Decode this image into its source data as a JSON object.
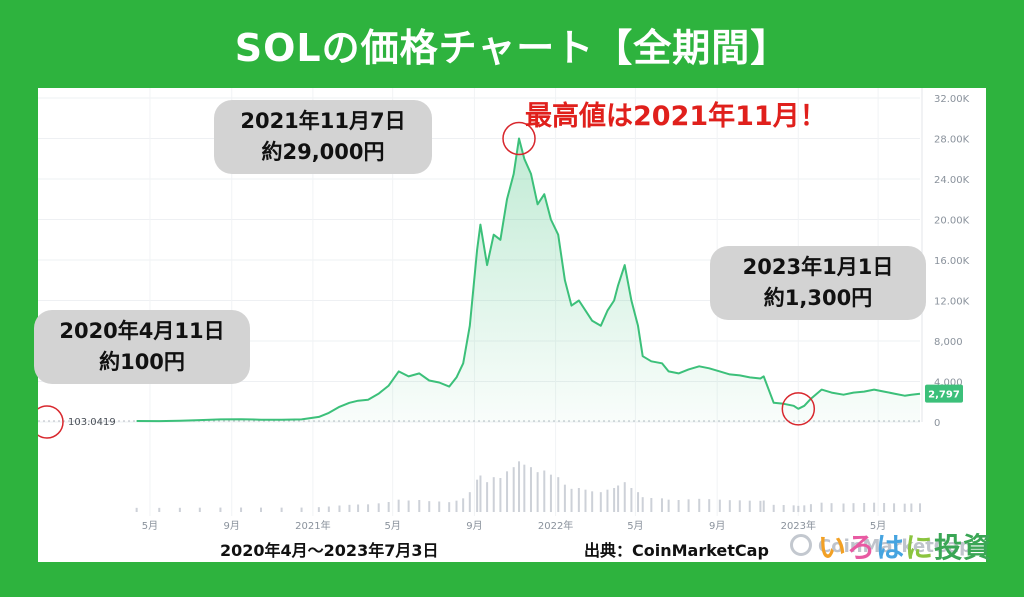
{
  "header": {
    "title": "SOLの価格チャート【全期間】"
  },
  "annotations": {
    "peak_note": "最高値は2021年11月！",
    "start": {
      "line1": "2020年4月11日",
      "line2": "約100円"
    },
    "peak": {
      "line1": "2021年11月7日",
      "line2": "約29,000円"
    },
    "recent": {
      "line1": "2023年1月1日",
      "line2": "約1,300円"
    }
  },
  "footer": {
    "range": "2020年4月〜2023年7月3日",
    "source": "出典：CoinMarketCap",
    "brand_parts": [
      {
        "text": "い",
        "color": "#f2a024"
      },
      {
        "text": "ろ",
        "color": "#e85aa2"
      },
      {
        "text": "は",
        "color": "#46a4e0"
      },
      {
        "text": "に",
        "color": "#8bc43f"
      },
      {
        "text": "投資",
        "color": "#3aa655"
      }
    ]
  },
  "watermark": "CoinMarketCap",
  "chart_data": {
    "type": "area",
    "currency": "JPY",
    "start_value_label": "103.0419",
    "last_value_label": "2,797",
    "y_ticks": [
      "0",
      "4,000",
      "8,000",
      "12.00K",
      "16.00K",
      "20.00K",
      "24.00K",
      "28.00K",
      "32.00K"
    ],
    "y_tick_values": [
      0,
      4000,
      8000,
      12000,
      16000,
      20000,
      24000,
      28000,
      32000
    ],
    "ylim": [
      0,
      32000
    ],
    "x_ticks": [
      "5月",
      "9月",
      "2021年",
      "5月",
      "9月",
      "2022年",
      "5月",
      "9月",
      "2023年",
      "5月"
    ],
    "x_tick_dates": [
      "2020-05-01",
      "2020-09-01",
      "2021-01-01",
      "2021-05-01",
      "2021-09-01",
      "2022-01-01",
      "2022-05-01",
      "2022-09-01",
      "2023-01-01",
      "2023-05-01"
    ],
    "xlim": [
      "2020-04-01",
      "2023-07-03"
    ],
    "line_color": "#3cc07a",
    "series": [
      {
        "x": [
          "2020-04-11",
          "2020-05-15",
          "2020-06-15",
          "2020-07-15",
          "2020-08-15",
          "2020-09-15",
          "2020-10-15",
          "2020-11-15",
          "2020-12-15",
          "2021-01-10",
          "2021-01-25",
          "2021-02-10",
          "2021-02-25",
          "2021-03-10",
          "2021-03-25",
          "2021-04-10",
          "2021-04-25",
          "2021-05-10",
          "2021-05-25",
          "2021-06-10",
          "2021-06-25",
          "2021-07-10",
          "2021-07-25",
          "2021-08-05",
          "2021-08-15",
          "2021-08-25",
          "2021-09-05",
          "2021-09-10",
          "2021-09-20",
          "2021-09-30",
          "2021-10-10",
          "2021-10-20",
          "2021-10-30",
          "2021-11-07",
          "2021-11-15",
          "2021-11-25",
          "2021-12-05",
          "2021-12-15",
          "2021-12-25",
          "2022-01-05",
          "2022-01-15",
          "2022-01-25",
          "2022-02-05",
          "2022-02-15",
          "2022-02-25",
          "2022-03-10",
          "2022-03-20",
          "2022-03-30",
          "2022-04-05",
          "2022-04-15",
          "2022-04-25",
          "2022-05-05",
          "2022-05-12",
          "2022-05-25",
          "2022-06-10",
          "2022-06-20",
          "2022-07-05",
          "2022-07-20",
          "2022-08-05",
          "2022-08-20",
          "2022-09-05",
          "2022-09-20",
          "2022-10-05",
          "2022-10-20",
          "2022-11-05",
          "2022-11-10",
          "2022-11-25",
          "2022-12-10",
          "2022-12-25",
          "2023-01-01",
          "2023-01-10",
          "2023-01-20",
          "2023-02-05",
          "2023-02-20",
          "2023-03-10",
          "2023-03-25",
          "2023-04-10",
          "2023-04-25",
          "2023-05-10",
          "2023-05-25",
          "2023-06-10",
          "2023-06-20",
          "2023-07-03"
        ],
        "values": [
          100,
          90,
          120,
          190,
          260,
          280,
          230,
          220,
          260,
          500,
          900,
          1500,
          1900,
          2100,
          2200,
          2800,
          3600,
          5000,
          4500,
          4800,
          4100,
          3900,
          3500,
          4400,
          5800,
          9500,
          17000,
          19500,
          15500,
          18500,
          18000,
          22000,
          24500,
          28000,
          26000,
          24500,
          21500,
          22500,
          20000,
          18500,
          14000,
          11500,
          12000,
          11000,
          10000,
          9500,
          11000,
          12000,
          13500,
          15500,
          12000,
          9500,
          6500,
          6000,
          5800,
          5000,
          4800,
          5200,
          5500,
          5300,
          5000,
          4700,
          4600,
          4400,
          4300,
          4500,
          1900,
          1800,
          1600,
          1300,
          1600,
          2300,
          3200,
          2900,
          2700,
          2900,
          3000,
          3200,
          3000,
          2800,
          2600,
          2700,
          2797
        ]
      }
    ]
  }
}
